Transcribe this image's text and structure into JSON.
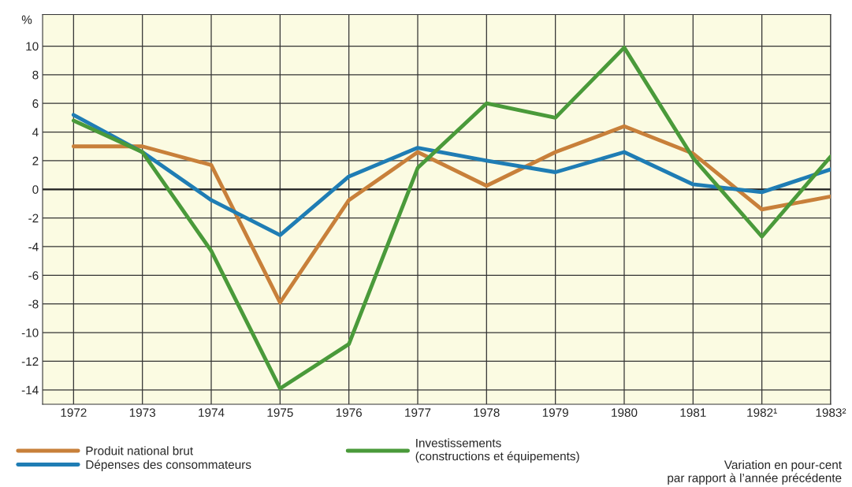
{
  "chart_data": {
    "type": "line",
    "ylabel": "%",
    "x": [
      1972,
      1973,
      1974,
      1975,
      1976,
      1977,
      1978,
      1979,
      1980,
      1981,
      1982,
      1983
    ],
    "xlim": [
      1971.55,
      1983
    ],
    "xticks": [
      1972,
      1973,
      1974,
      1975,
      1976,
      1977,
      1978,
      1979,
      1980,
      1981,
      {
        "value": 1982,
        "label": "1982¹"
      },
      {
        "value": 1983,
        "label": "1983²"
      }
    ],
    "ylim": [
      -15,
      12.2
    ],
    "yticks": [
      -14,
      -12,
      -10,
      -8,
      -6,
      -4,
      -2,
      0,
      2,
      4,
      6,
      8,
      10
    ],
    "series": [
      {
        "name": "Produit national brut",
        "color": "#c8803a",
        "values": [
          3.0,
          3.0,
          1.7,
          -7.9,
          -0.75,
          2.6,
          0.25,
          2.6,
          4.4,
          2.5,
          -1.4,
          -0.5
        ]
      },
      {
        "name": "Dépenses des consommateurs",
        "color": "#1f7db4",
        "values": [
          5.2,
          2.6,
          -0.75,
          -3.2,
          0.9,
          2.9,
          2.0,
          1.2,
          2.6,
          0.35,
          -0.2,
          1.4
        ]
      },
      {
        "name": "Investissements\n(constructions et équipements)",
        "color": "#4a9a3a",
        "values": [
          4.8,
          2.6,
          -4.3,
          -13.9,
          -10.8,
          1.5,
          6.0,
          5.0,
          9.9,
          2.2,
          -3.3,
          2.3
        ]
      }
    ],
    "ref_lines": [
      {
        "axis": "y",
        "value": 0,
        "color": "#222222"
      }
    ],
    "grid": true,
    "legend": "bottom",
    "marker": "none",
    "line_style": "solid",
    "annotations": [
      "Variation en pour-cent\npar rapport à l’année précédente"
    ]
  }
}
